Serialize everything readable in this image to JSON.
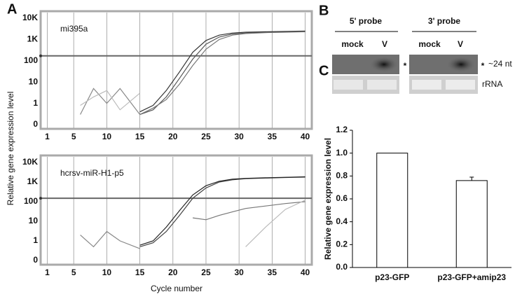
{
  "figure": {
    "panel_labels": [
      "A",
      "B",
      "C"
    ],
    "blot": {
      "probes": [
        "5' probe",
        "3' probe"
      ],
      "lanes": [
        "mock",
        "V",
        "mock",
        "V"
      ],
      "marks": [
        "*",
        "*"
      ],
      "size_label": "~24 nt",
      "loading_label": "rRNA"
    }
  },
  "chart_data": [
    {
      "type": "line",
      "title": "mi395a",
      "ylabel": "Relative gene expression level",
      "yscale": "log",
      "xlim": [
        0,
        41
      ],
      "xticks": [
        1,
        5,
        10,
        15,
        20,
        25,
        30,
        35,
        40
      ],
      "ylim": [
        0.1,
        10000
      ],
      "yticks": [
        1,
        10,
        100,
        {
          "value": 1000,
          "label": "1K"
        },
        {
          "value": 10000,
          "label": "10K"
        }
      ],
      "y_origin_label": "0",
      "threshold": 170,
      "x": [
        6,
        8,
        10,
        12,
        15,
        17,
        19,
        21,
        23,
        25,
        27,
        29,
        31,
        34,
        37,
        40
      ],
      "series": [
        {
          "color": "#555",
          "values": [
            null,
            null,
            null,
            null,
            0.3,
            0.5,
            2,
            15,
            120,
            600,
            1300,
            1800,
            2000,
            2200,
            2300,
            2400
          ]
        },
        {
          "color": "#333",
          "values": [
            null,
            null,
            null,
            null,
            0.4,
            0.8,
            4,
            30,
            250,
            900,
            1600,
            2000,
            2200,
            2300,
            2400,
            2500
          ]
        },
        {
          "color": "#777",
          "values": [
            null,
            null,
            null,
            null,
            0.3,
            0.6,
            1.5,
            8,
            60,
            350,
            1000,
            1600,
            1900,
            2100,
            2200,
            2300
          ]
        },
        {
          "color": "#888",
          "values": [
            0.3,
            5,
            1,
            5,
            0.3,
            null,
            null,
            null,
            null,
            null,
            null,
            null,
            null,
            null,
            null,
            null
          ]
        },
        {
          "color": "#bbb",
          "values": [
            0.8,
            2,
            4,
            0.5,
            3,
            null,
            null,
            null,
            null,
            null,
            null,
            null,
            null,
            null,
            null,
            null
          ]
        }
      ]
    },
    {
      "type": "line",
      "title": "hcrsv-miR-H1-p5",
      "xlabel": "Cycle number",
      "yscale": "log",
      "xlim": [
        0,
        41
      ],
      "xticks": [
        1,
        5,
        10,
        15,
        20,
        25,
        30,
        35,
        40
      ],
      "ylim": [
        0.1,
        10000
      ],
      "yticks": [
        1,
        10,
        100,
        {
          "value": 1000,
          "label": "1K"
        },
        {
          "value": 10000,
          "label": "10K"
        }
      ],
      "y_origin_label": "0",
      "threshold": 150,
      "x": [
        6,
        8,
        10,
        12,
        15,
        17,
        19,
        21,
        23,
        25,
        27,
        29,
        31,
        34,
        37,
        40
      ],
      "series": [
        {
          "color": "#444",
          "values": [
            null,
            null,
            null,
            null,
            0.5,
            0.8,
            3,
            20,
            150,
            500,
            1000,
            1300,
            1500,
            1600,
            1700,
            1800
          ]
        },
        {
          "color": "#222",
          "values": [
            null,
            null,
            null,
            null,
            0.6,
            1,
            5,
            35,
            220,
            650,
            1100,
            1400,
            1550,
            1650,
            1750,
            1850
          ]
        },
        {
          "color": "#777",
          "values": [
            null,
            null,
            null,
            null,
            null,
            null,
            null,
            null,
            15,
            12,
            20,
            30,
            45,
            60,
            80,
            100
          ]
        },
        {
          "color": "#bbb",
          "values": [
            null,
            null,
            null,
            null,
            null,
            null,
            null,
            null,
            null,
            null,
            null,
            null,
            0.5,
            5,
            40,
            120
          ]
        },
        {
          "color": "#888",
          "values": [
            2,
            0.5,
            3,
            1,
            0.4,
            null,
            null,
            null,
            null,
            null,
            null,
            null,
            null,
            null,
            null,
            null
          ]
        }
      ]
    },
    {
      "type": "bar",
      "ylabel": "Relative gene expression level",
      "categories": [
        "p23-GFP",
        "p23-GFP+amip23"
      ],
      "values": [
        1.0,
        0.76
      ],
      "errors": [
        null,
        0.03
      ],
      "color": "#fff",
      "ylim": [
        0,
        1.2
      ],
      "yticks": [
        {
          "value": 0,
          "label": "0.0"
        },
        {
          "value": 0.2,
          "label": "0.2"
        },
        {
          "value": 0.4,
          "label": "0.4"
        },
        {
          "value": 0.6,
          "label": "0.6"
        },
        {
          "value": 0.8,
          "label": "0.8"
        },
        {
          "value": 1.0,
          "label": "1.0"
        },
        {
          "value": 1.2,
          "label": "1.2"
        }
      ]
    }
  ]
}
